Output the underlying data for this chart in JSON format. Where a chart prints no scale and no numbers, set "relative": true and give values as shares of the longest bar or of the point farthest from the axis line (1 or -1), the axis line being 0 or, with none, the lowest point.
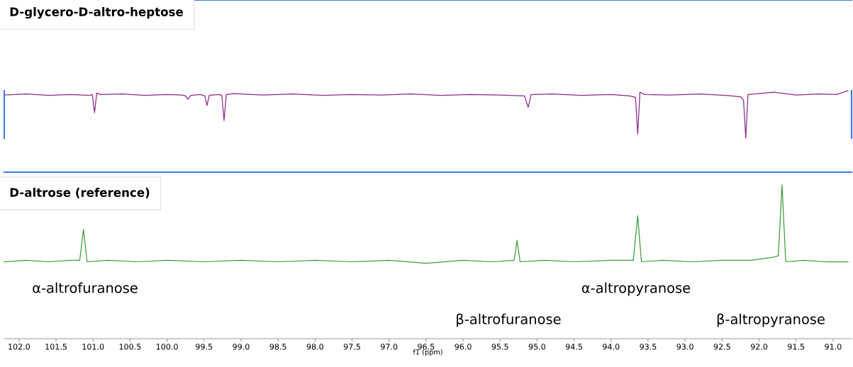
{
  "chart_data": [
    {
      "type": "line",
      "title": "D-glycero-D-altro-heptose",
      "relative": true,
      "xlim": [
        102.2,
        90.75
      ],
      "tick_labels": false,
      "grid": false,
      "legend": false,
      "series": [
        {
          "color": "#8b2a8b",
          "x": [
            102.2,
            101.9,
            101.6,
            101.3,
            101.05,
            101.01,
            100.98,
            100.95,
            100.9,
            100.6,
            100.3,
            100.0,
            99.8,
            99.75,
            99.72,
            99.68,
            99.55,
            99.49,
            99.46,
            99.43,
            99.3,
            99.26,
            99.23,
            99.2,
            99.1,
            98.7,
            98.3,
            97.9,
            97.5,
            97.1,
            96.7,
            96.3,
            95.9,
            95.5,
            95.17,
            95.12,
            95.08,
            94.8,
            94.4,
            94.0,
            93.75,
            93.67,
            93.64,
            93.61,
            93.55,
            93.2,
            92.8,
            92.45,
            92.25,
            92.21,
            92.18,
            92.15,
            92.05,
            91.8,
            91.5,
            91.2,
            90.95,
            90.8
          ],
          "values": [
            0.91,
            0.93,
            0.9,
            0.92,
            0.9,
            0.92,
            0.54,
            0.95,
            0.92,
            0.93,
            0.9,
            0.92,
            0.91,
            0.89,
            0.82,
            0.9,
            0.92,
            0.89,
            0.69,
            0.9,
            0.92,
            0.9,
            0.37,
            0.92,
            0.94,
            0.91,
            0.93,
            0.9,
            0.92,
            0.91,
            0.93,
            0.9,
            0.92,
            0.91,
            0.89,
            0.65,
            0.92,
            0.93,
            0.9,
            0.92,
            0.89,
            0.86,
            0.09,
            0.97,
            0.92,
            0.91,
            0.93,
            0.9,
            0.87,
            0.8,
            0.0,
            0.92,
            0.93,
            0.97,
            0.91,
            0.93,
            0.92,
            1.0
          ]
        }
      ]
    },
    {
      "type": "line",
      "title": "D-altrose (reference)",
      "relative": true,
      "xlim": [
        102.2,
        90.75
      ],
      "tick_labels": "x",
      "xlabel": "f1 (ppm)",
      "grid": false,
      "legend": false,
      "xticks": [
        {
          "value": 102.0,
          "label": "102.0"
        },
        {
          "value": 101.5,
          "label": "101.5"
        },
        {
          "value": 101.0,
          "label": "101.0"
        },
        {
          "value": 100.5,
          "label": "100.5"
        },
        {
          "value": 100.0,
          "label": "100.0"
        },
        {
          "value": 99.5,
          "label": "99.5"
        },
        {
          "value": 99.0,
          "label": "99.0"
        },
        {
          "value": 98.5,
          "label": "98.5"
        },
        {
          "value": 98.0,
          "label": "98.0"
        },
        {
          "value": 97.5,
          "label": "97.5"
        },
        {
          "value": 97.0,
          "label": "97.0"
        },
        {
          "value": 96.5,
          "label": "96.5"
        },
        {
          "value": 96.0,
          "label": "96.0"
        },
        {
          "value": 95.5,
          "label": "95.5"
        },
        {
          "value": 95.0,
          "label": "95.0"
        },
        {
          "value": 94.5,
          "label": "94.5"
        },
        {
          "value": 94.0,
          "label": "94.0"
        },
        {
          "value": 93.5,
          "label": "93.5"
        },
        {
          "value": 93.0,
          "label": "93.0"
        },
        {
          "value": 92.5,
          "label": "92.5"
        },
        {
          "value": 92.0,
          "label": "92.0"
        },
        {
          "value": 91.5,
          "label": "91.5"
        },
        {
          "value": 91.0,
          "label": "91.0"
        }
      ],
      "series": [
        {
          "color": "#3e9a3e",
          "x": [
            102.2,
            101.9,
            101.6,
            101.3,
            101.18,
            101.13,
            101.08,
            100.8,
            100.4,
            100.0,
            99.5,
            99.0,
            98.5,
            98.0,
            97.5,
            97.0,
            96.5,
            96.0,
            95.6,
            95.31,
            95.27,
            95.23,
            94.9,
            94.5,
            94.0,
            93.7,
            93.64,
            93.59,
            93.3,
            92.9,
            92.5,
            92.1,
            91.8,
            91.74,
            91.69,
            91.64,
            91.4,
            91.1,
            90.8
          ],
          "values": [
            0.5,
            0.51,
            0.5,
            0.51,
            0.51,
            0.71,
            0.5,
            0.51,
            0.5,
            0.51,
            0.5,
            0.51,
            0.5,
            0.51,
            0.5,
            0.51,
            0.49,
            0.51,
            0.5,
            0.51,
            0.64,
            0.5,
            0.51,
            0.5,
            0.51,
            0.51,
            0.8,
            0.5,
            0.51,
            0.5,
            0.51,
            0.51,
            0.53,
            0.54,
            1.0,
            0.5,
            0.51,
            0.5,
            0.5
          ]
        }
      ],
      "annotations": [
        "α-altrofuranose",
        "β-altrofuranose",
        "α-altropyranose",
        "β-altropyranose"
      ]
    }
  ]
}
